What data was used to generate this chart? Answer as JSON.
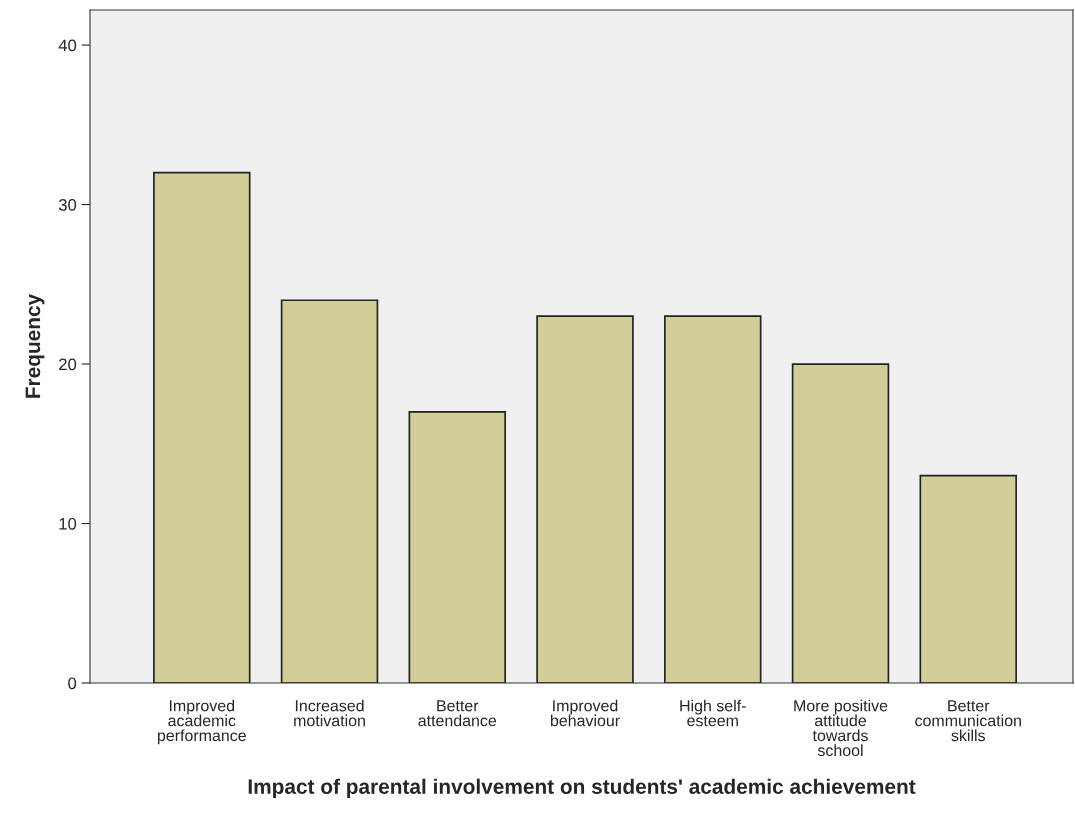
{
  "chart_data": {
    "type": "bar",
    "xlabel": "Impact of parental involvement on students' academic achievement",
    "ylabel": "Frequency",
    "categories": [
      "Improved\nacademic\nperformance",
      "Increased\nmotivation",
      "Better\nattendance",
      "Improved\nbehaviour",
      "High self-\nesteem",
      "More positive\nattitude\ntowards\nschool",
      "Better\ncommunication\nskills"
    ],
    "values": [
      32,
      24,
      17,
      23,
      23,
      20,
      13
    ],
    "color": "#d3ce97",
    "ylim": [
      0,
      42.2
    ],
    "yticks": [
      0,
      10,
      20,
      30,
      40
    ],
    "grid": false
  }
}
